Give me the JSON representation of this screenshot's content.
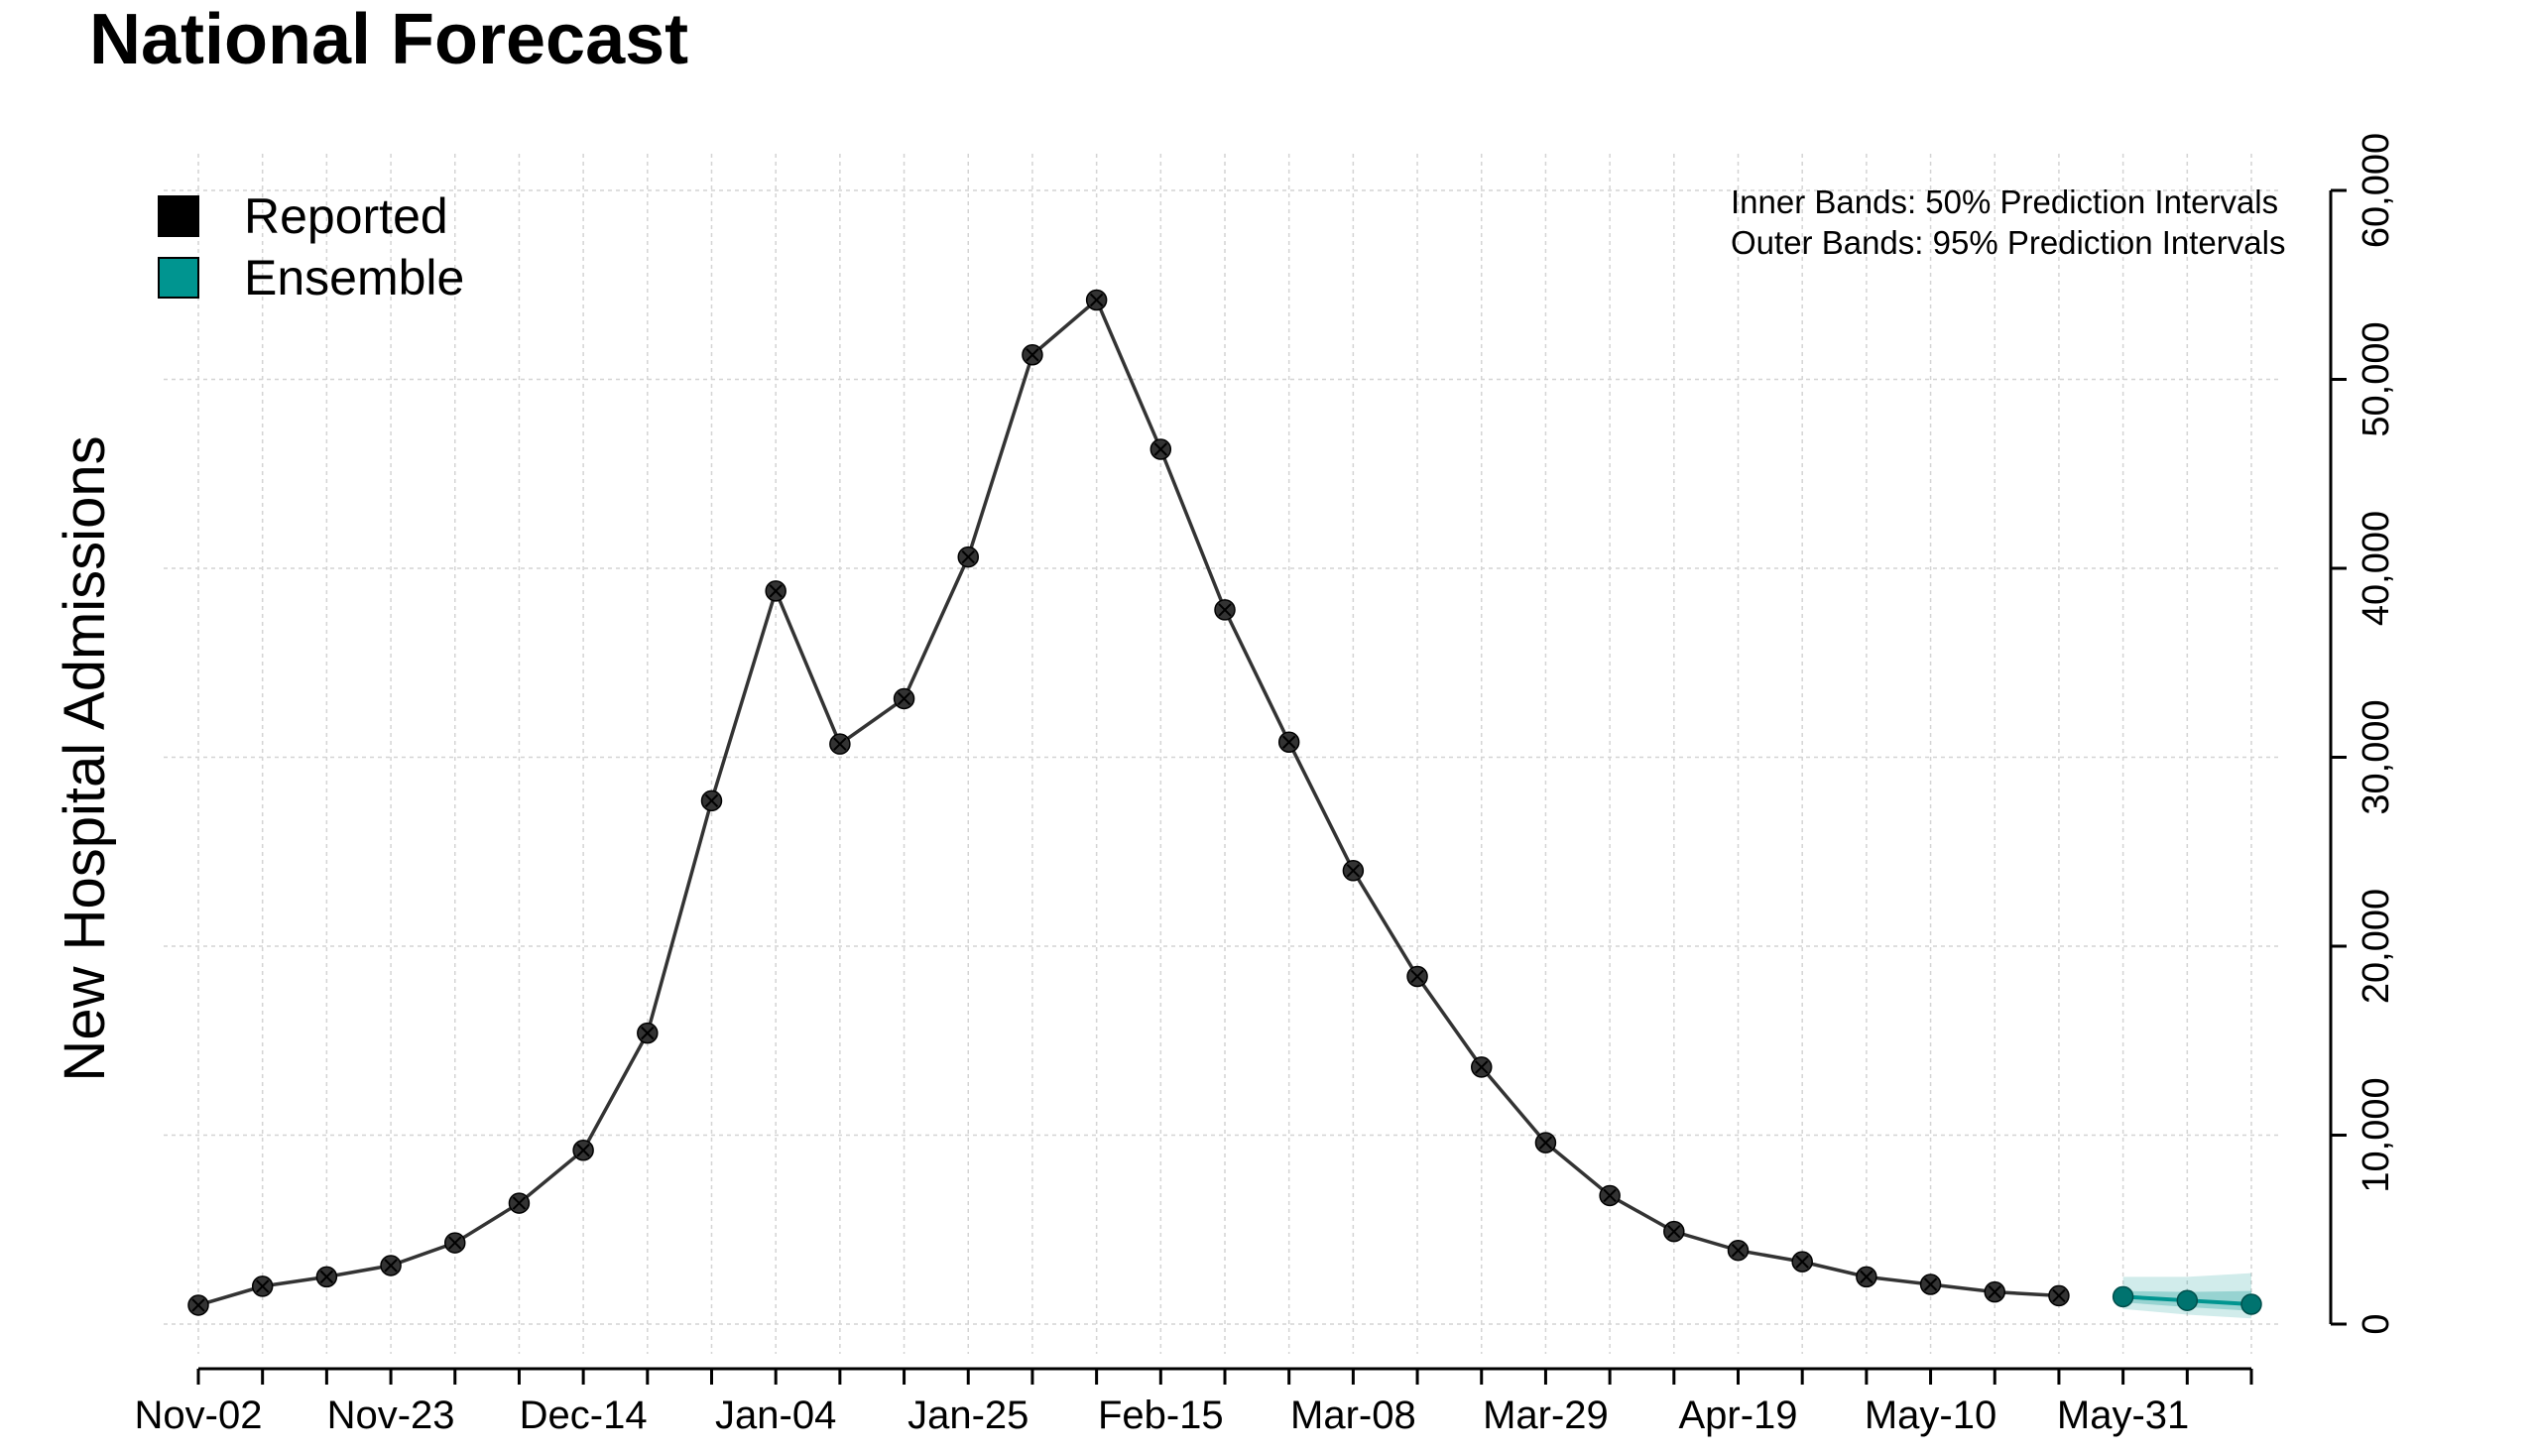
{
  "chart_data": {
    "type": "line",
    "title": "National Forecast",
    "xlabel": "",
    "ylabel": "New Hospital Admissions",
    "grid": true,
    "legend": {
      "placement": "top-left",
      "entries": [
        {
          "name": "Reported",
          "color": "#000000"
        },
        {
          "name": "Ensemble",
          "color": "#009590"
        }
      ]
    },
    "annotations": [
      "Inner Bands: 50% Prediction Intervals",
      "Outer Bands: 95% Prediction Intervals"
    ],
    "x_tick_labels": [
      "Nov-02",
      "Nov-23",
      "Dec-14",
      "Jan-04",
      "Jan-25",
      "Feb-15",
      "Mar-08",
      "Mar-29",
      "Apr-19",
      "May-10",
      "May-31"
    ],
    "y_tick_labels": [
      "0",
      "10,000",
      "20,000",
      "30,000",
      "40,000",
      "50,000",
      "60,000"
    ],
    "ylim": [
      0,
      60000
    ],
    "series": [
      {
        "name": "Reported",
        "color": "#000000",
        "x": [
          "2019-11-02",
          "2019-11-09",
          "2019-11-16",
          "2019-11-23",
          "2019-11-30",
          "2019-12-07",
          "2019-12-14",
          "2019-12-21",
          "2019-12-28",
          "2020-01-04",
          "2020-01-11",
          "2020-01-18",
          "2020-01-25",
          "2020-02-01",
          "2020-02-08",
          "2020-02-15",
          "2020-02-22",
          "2020-02-29",
          "2020-03-07",
          "2020-03-14",
          "2020-03-21",
          "2020-03-28",
          "2020-04-04",
          "2020-04-11",
          "2020-04-18",
          "2020-04-25",
          "2020-05-02",
          "2020-05-09",
          "2020-05-16",
          "2020-05-23"
        ],
        "values": [
          1000,
          2000,
          2500,
          3100,
          4300,
          6400,
          9200,
          15400,
          27700,
          38800,
          30700,
          33100,
          40600,
          51300,
          54200,
          46300,
          37800,
          30800,
          24000,
          18400,
          13600,
          9600,
          6800,
          4900,
          3900,
          3300,
          2500,
          2100,
          1700,
          1500
        ]
      },
      {
        "name": "Ensemble",
        "color": "#009590",
        "x": [
          "2020-05-30",
          "2020-06-06",
          "2020-06-13"
        ],
        "values": [
          1450,
          1250,
          1050
        ],
        "band50": [
          [
            1150,
            1750
          ],
          [
            900,
            1700
          ],
          [
            700,
            1750
          ]
        ],
        "band95": [
          [
            800,
            2500
          ],
          [
            500,
            2500
          ],
          [
            300,
            2700
          ]
        ]
      }
    ]
  }
}
